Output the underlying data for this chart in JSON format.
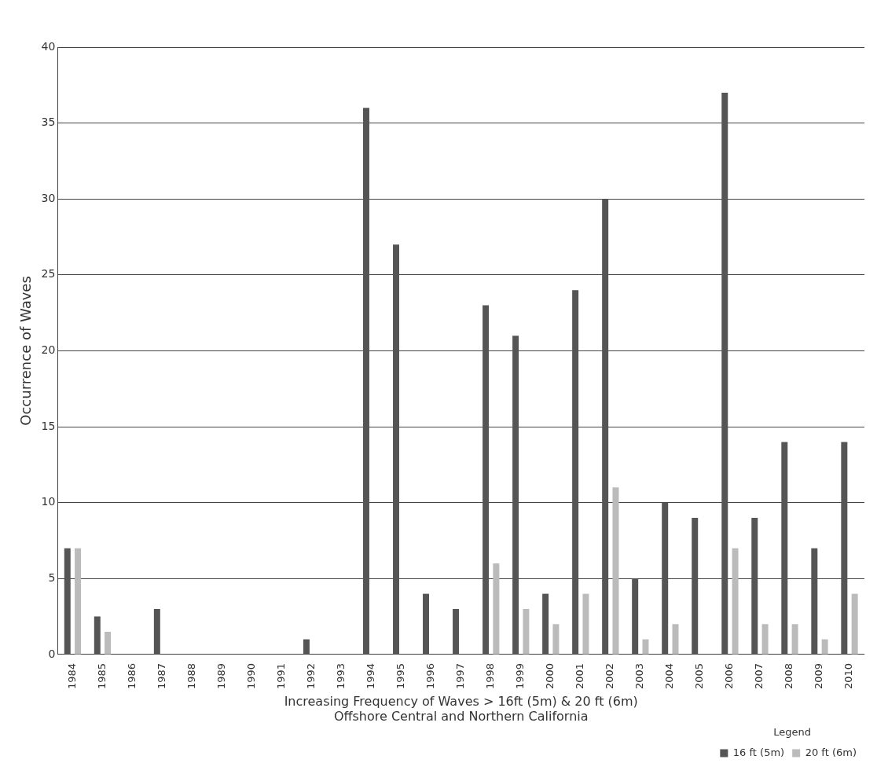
{
  "chart_data": {
    "type": "bar",
    "xlabel": "Increasing Frequency of Waves > 16ft (5m) & 20 ft (6m)\nOffshore Central and Northern California",
    "ylabel": "Occurrence of Waves",
    "legend_title": "Legend",
    "categories": [
      "1984",
      "1985",
      "1986",
      "1987",
      "1988",
      "1989",
      "1990",
      "1991",
      "1992",
      "1993",
      "1994",
      "1995",
      "1996",
      "1997",
      "1998",
      "1999",
      "2000",
      "2001",
      "2002",
      "2003",
      "2004",
      "2005",
      "2006",
      "2007",
      "2008",
      "2009",
      "2010"
    ],
    "series": [
      {
        "name": "16 ft (5m)",
        "color": "#555555",
        "values": [
          7,
          2.5,
          0,
          3,
          0,
          0,
          0,
          0,
          1,
          0,
          36,
          27,
          4,
          3,
          23,
          21,
          4,
          24,
          30,
          5,
          10,
          9,
          37,
          9,
          14,
          7,
          14
        ]
      },
      {
        "name": "20 ft (6m)",
        "color": "#bbbbbb",
        "values": [
          7,
          1.5,
          0,
          0,
          0,
          0,
          0,
          0,
          0,
          0,
          0,
          0,
          0,
          0,
          6,
          3,
          2,
          4,
          11,
          1,
          2,
          0,
          7,
          2,
          2,
          1,
          4
        ]
      }
    ],
    "ylim": [
      0,
      40
    ],
    "yticks": [
      0,
      5,
      10,
      15,
      20,
      25,
      30,
      35,
      40
    ],
    "grid": "y",
    "legend": "bottom right"
  }
}
